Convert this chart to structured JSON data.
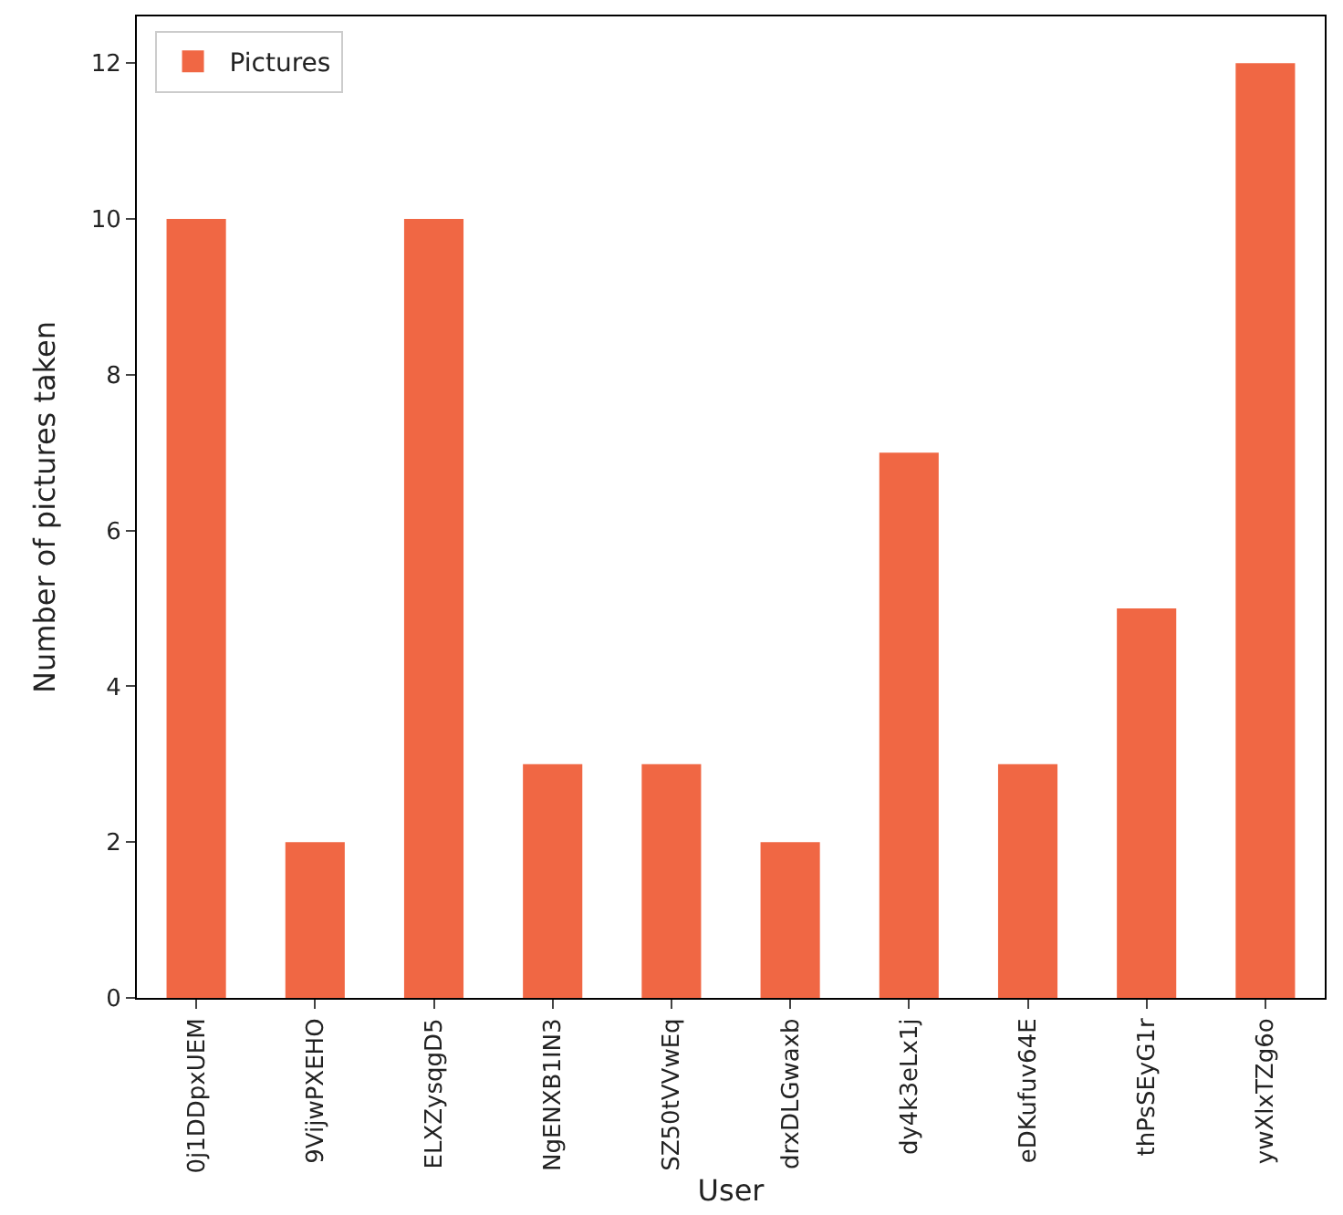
{
  "chart_data": {
    "type": "bar",
    "xlabel": "User",
    "ylabel": "Number of pictures taken",
    "categories": [
      "0j1DDpxUEM",
      "9VijwPXEHO",
      "ELXZysqgD5",
      "NgENXB1IN3",
      "SZ50tVVwEq",
      "drxDLGwaxb",
      "dy4k3eLx1j",
      "eDKufuv64E",
      "thPsSEyG1r",
      "ywXlxTZg6o"
    ],
    "series": [
      {
        "name": "Pictures",
        "color": "#f06744",
        "values": [
          10,
          2,
          10,
          3,
          3,
          2,
          7,
          3,
          5,
          12
        ]
      }
    ],
    "ylim": [
      0,
      12.6
    ],
    "yticks": [
      0,
      2,
      4,
      6,
      8,
      10,
      12
    ],
    "legend": "top left"
  }
}
